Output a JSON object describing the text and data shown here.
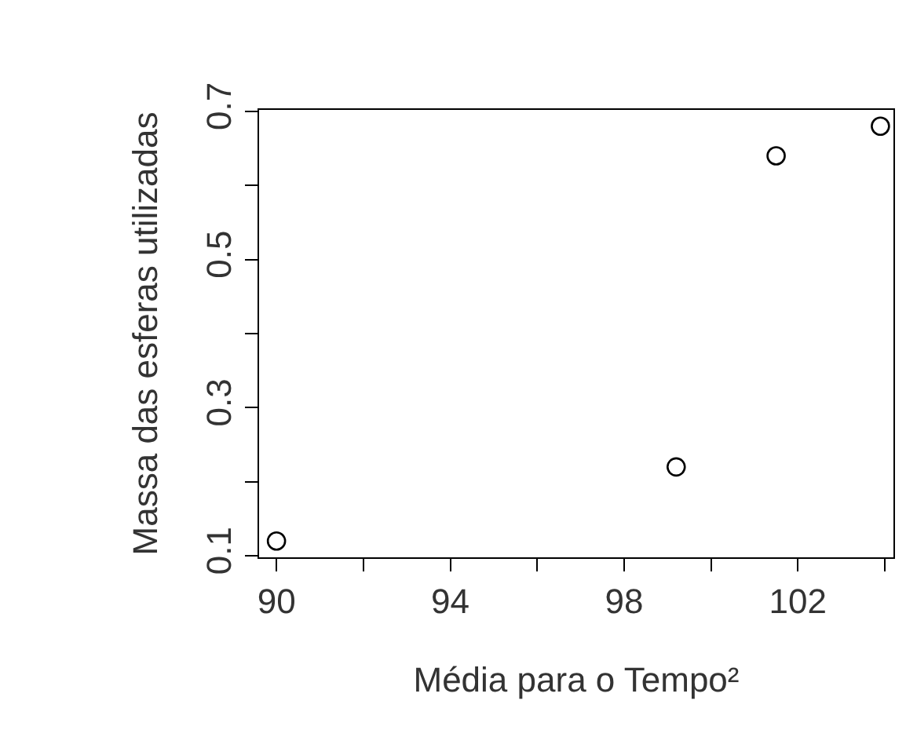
{
  "chart_data": {
    "type": "scatter",
    "xlabel": "Média para o Tempo²",
    "ylabel": "Massa das esferas utilizadas",
    "x": [
      90.0,
      99.2,
      101.5,
      103.9
    ],
    "values": [
      0.12,
      0.22,
      0.64,
      0.68
    ],
    "color": "#000000",
    "marker": "circle",
    "xlim": [
      89.6,
      104.2
    ],
    "ylim": [
      0.098,
      0.702
    ],
    "xticks": [
      90,
      {
        "value": 92,
        "label": null
      },
      94,
      {
        "value": 96,
        "label": null
      },
      98,
      {
        "value": 100,
        "label": null
      },
      102,
      {
        "value": 104,
        "label": null
      }
    ],
    "yticks": [
      0.1,
      {
        "value": 0.2,
        "label": null
      },
      0.3,
      {
        "value": 0.4,
        "label": null
      },
      0.5,
      {
        "value": 0.6,
        "label": null
      },
      0.7
    ]
  }
}
